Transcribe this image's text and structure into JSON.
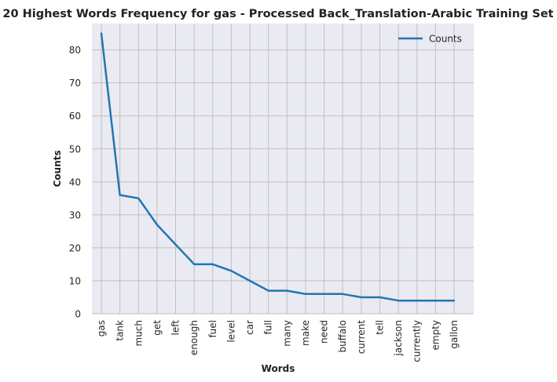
{
  "chart_data": {
    "type": "line",
    "title": "20 Highest Words Frequency for gas - Processed Back_Translation-Arabic Training Set",
    "xlabel": "Words",
    "ylabel": "Counts",
    "categories": [
      "gas",
      "tank",
      "much",
      "get",
      "left",
      "enough",
      "fuel",
      "level",
      "car",
      "full",
      "many",
      "make",
      "need",
      "buffalo",
      "current",
      "tell",
      "jackson",
      "currently",
      "empty",
      "gallon"
    ],
    "series": [
      {
        "name": "Counts",
        "values": [
          85,
          36,
          35,
          27,
          21,
          15,
          15,
          13,
          10,
          7,
          7,
          6,
          6,
          6,
          5,
          5,
          4,
          4,
          4,
          4
        ]
      }
    ],
    "ylim": [
      0,
      88
    ],
    "yticks": [
      0,
      10,
      20,
      30,
      40,
      50,
      60,
      70,
      80
    ],
    "grid": true,
    "legend_position": "top-right",
    "colors": {
      "line": "#1f77b4",
      "plot_background": "#eaeaf2",
      "grid": "#c0c0c0"
    }
  }
}
